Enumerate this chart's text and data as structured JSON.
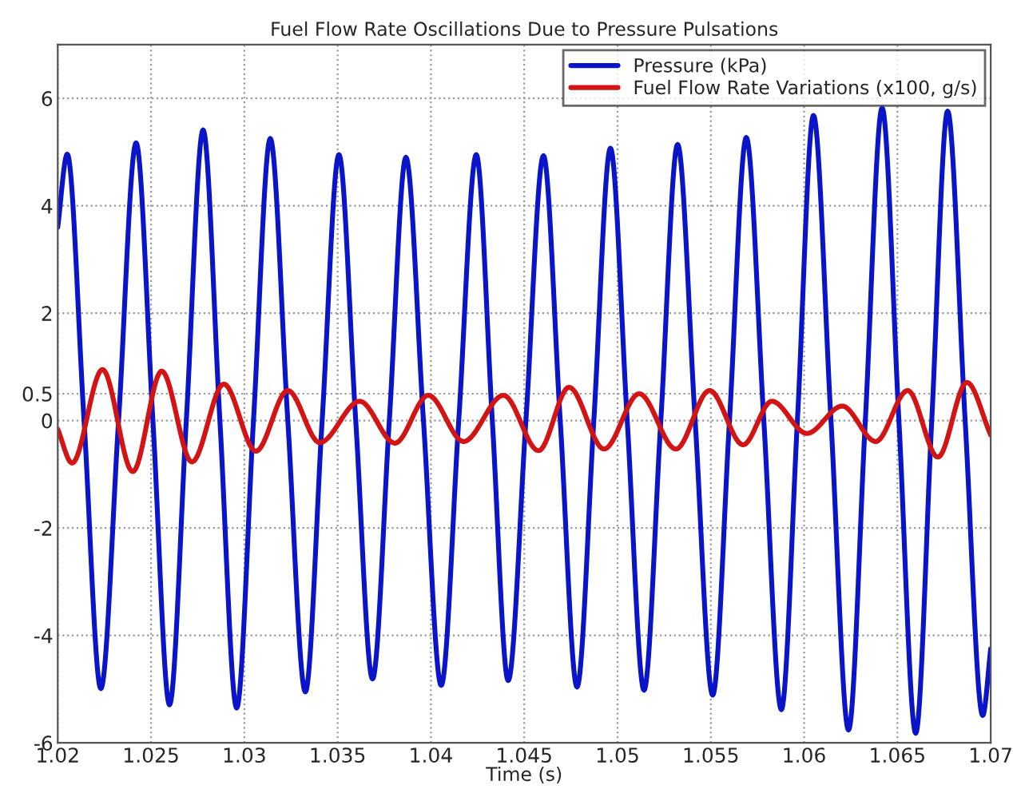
{
  "chart_data": {
    "type": "line",
    "title": "Fuel Flow Rate Oscillations Due to Pressure Pulsations",
    "xlabel": "Time (s)",
    "xlim": [
      1.02,
      1.07
    ],
    "xticks": [
      {
        "value": 1.02,
        "label": "1.02"
      },
      {
        "value": 1.025,
        "label": "1.025"
      },
      {
        "value": 1.03,
        "label": "1.03"
      },
      {
        "value": 1.035,
        "label": "1.035"
      },
      {
        "value": 1.04,
        "label": "1.04"
      },
      {
        "value": 1.045,
        "label": "1.045"
      },
      {
        "value": 1.05,
        "label": "1.05"
      },
      {
        "value": 1.055,
        "label": "1.055"
      },
      {
        "value": 1.06,
        "label": "1.06"
      },
      {
        "value": 1.065,
        "label": "1.065"
      },
      {
        "value": 1.07,
        "label": "1.07"
      }
    ],
    "ylim": [
      -6,
      7
    ],
    "yticks": [
      -6,
      -4,
      -2,
      0,
      0.5,
      2,
      4,
      6
    ],
    "grid": true,
    "legend": "top right",
    "marker": "none",
    "line_style": "solid",
    "series": [
      {
        "name": "Pressure (kPa)",
        "color": "#0a14c8",
        "x": [
          1.02,
          1.02051,
          1.02141,
          1.02231,
          1.02326,
          1.0242,
          1.0251,
          1.02599,
          1.02689,
          1.02779,
          1.02869,
          1.02959,
          1.03049,
          1.03139,
          1.03233,
          1.03327,
          1.03417,
          1.03507,
          1.03597,
          1.03687,
          1.03777,
          1.03866,
          1.0396,
          1.04055,
          1.04149,
          1.04243,
          1.04329,
          1.04414,
          1.04509,
          1.04603,
          1.04693,
          1.04783,
          1.04873,
          1.04962,
          1.05052,
          1.05142,
          1.05232,
          1.05322,
          1.05416,
          1.0551,
          1.056,
          1.0569,
          1.05784,
          1.05878,
          1.05964,
          1.0605,
          1.06144,
          1.06238,
          1.06328,
          1.06418,
          1.06508,
          1.06598,
          1.06684,
          1.06769,
          1.06863,
          1.06957,
          1.07
        ],
        "values": [
          3.6,
          4.96,
          0,
          -4.99,
          0,
          5.17,
          0,
          -5.29,
          0,
          5.41,
          0,
          -5.35,
          0,
          5.25,
          0,
          -5.05,
          0,
          4.95,
          0,
          -4.81,
          0,
          4.9,
          0,
          -4.93,
          0,
          4.95,
          0,
          -4.84,
          0,
          4.93,
          0,
          -4.96,
          0,
          5.07,
          0,
          -5.02,
          0,
          5.14,
          0,
          -5.11,
          0,
          5.27,
          0,
          -5.38,
          0,
          5.68,
          0,
          -5.76,
          0,
          5.82,
          0,
          -5.82,
          0,
          5.76,
          0,
          -5.49,
          -4.25
        ]
      },
      {
        "name": "Fuel Flow Rate Variations (x100, g/s)",
        "color": "#d21414",
        "x": [
          1.02,
          1.02077,
          1.0224,
          1.02402,
          1.02557,
          1.02719,
          1.0289,
          1.03062,
          1.03233,
          1.03404,
          1.03618,
          1.03807,
          1.03986,
          1.04175,
          1.04389,
          1.04577,
          1.0474,
          1.04928,
          1.05116,
          1.05313,
          1.05493,
          1.05673,
          1.05827,
          1.06015,
          1.06204,
          1.06384,
          1.06555,
          1.06717,
          1.06872,
          1.07
        ],
        "values": [
          -0.16,
          -0.79,
          0.95,
          -0.95,
          0.92,
          -0.77,
          0.68,
          -0.57,
          0.56,
          -0.41,
          0.36,
          -0.42,
          0.47,
          -0.39,
          0.47,
          -0.56,
          0.62,
          -0.53,
          0.5,
          -0.53,
          0.56,
          -0.45,
          0.36,
          -0.24,
          0.27,
          -0.39,
          0.56,
          -0.68,
          0.71,
          -0.27
        ]
      }
    ]
  }
}
